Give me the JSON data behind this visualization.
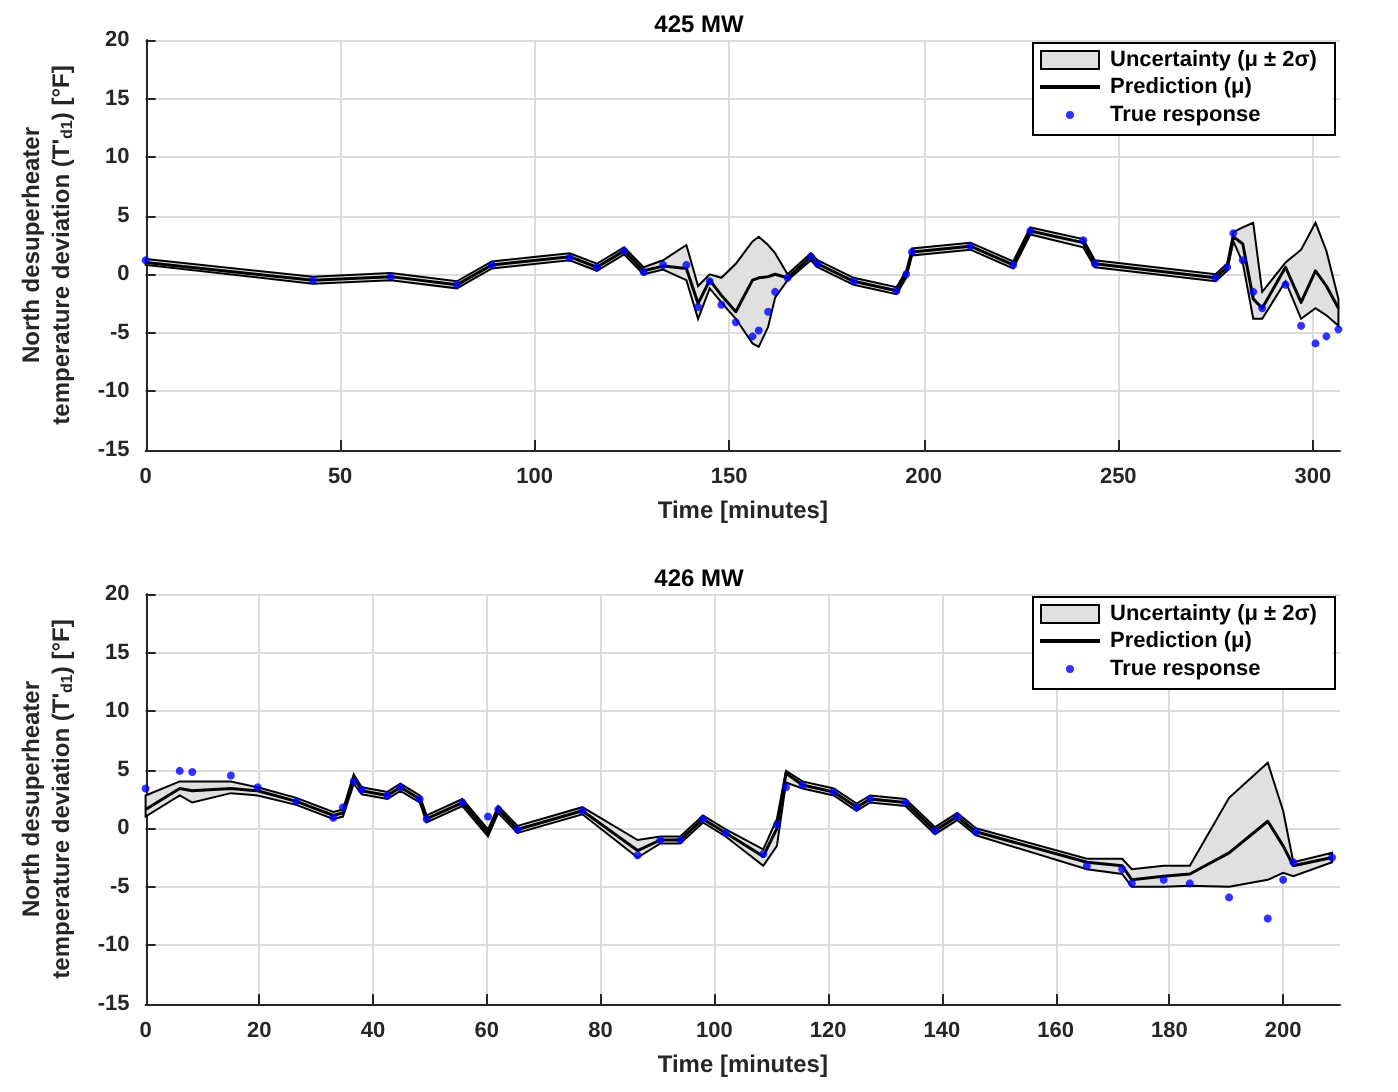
{
  "chart_data": [
    {
      "type": "line",
      "title": "425 MW",
      "xlabel": "Time [minutes]",
      "ylabel": "North desuperheater temperature deviation (T'$_{d1}$) [°F]",
      "xlim": [
        0,
        307
      ],
      "xticks": [
        0,
        50,
        100,
        150,
        200,
        250,
        300
      ],
      "ylim": [
        -15,
        20
      ],
      "yticks": [
        -15,
        -10,
        -5,
        0,
        5,
        10,
        15,
        20
      ],
      "grid": true,
      "legend": "top right",
      "annotations": [
        "Uncertainty (μ ± 2σ)"
      ],
      "x": [
        0,
        43,
        63,
        80,
        89,
        109,
        116,
        123,
        128,
        133,
        139,
        142,
        145,
        148,
        151.7,
        156,
        157.6,
        160,
        161.8,
        165,
        171,
        172.7,
        182,
        193,
        195.5,
        197,
        212,
        223,
        227.4,
        241,
        244,
        275,
        278,
        279.6,
        282,
        284.7,
        287,
        293,
        297,
        300.7,
        303.5,
        306.6
      ],
      "series": [
        {
          "name": "Prediction (μ)",
          "type": "line",
          "color": "#000000",
          "values": [
            1.0,
            -0.5,
            -0.2,
            -0.9,
            0.8,
            1.5,
            0.6,
            2.0,
            0.3,
            0.7,
            0.5,
            -2.5,
            -0.5,
            -1.8,
            -3.2,
            -0.5,
            -0.3,
            -0.2,
            0.0,
            -0.3,
            1.5,
            0.9,
            -0.6,
            -1.4,
            0.0,
            1.9,
            2.4,
            0.8,
            3.7,
            2.7,
            0.9,
            -0.3,
            0.6,
            3.2,
            2.6,
            -2.1,
            -2.9,
            0.6,
            -2.4,
            0.3,
            -1.0,
            -2.9
          ],
          "lower": [
            0.8,
            -0.8,
            -0.5,
            -1.2,
            0.5,
            1.2,
            0.3,
            1.7,
            0.0,
            0.4,
            -0.5,
            -3.8,
            -1.2,
            -2.4,
            -3.8,
            -5.9,
            -6.2,
            -4.5,
            -2.0,
            -0.5,
            1.2,
            0.6,
            -0.9,
            -1.7,
            -0.3,
            1.6,
            2.1,
            0.5,
            3.4,
            2.3,
            0.6,
            -0.6,
            0.3,
            2.8,
            1.0,
            -3.8,
            -3.8,
            -0.6,
            -3.8,
            -2.9,
            -3.5,
            -4.4
          ],
          "upper": [
            1.3,
            -0.2,
            0.1,
            -0.6,
            1.1,
            1.8,
            0.9,
            2.3,
            0.6,
            1.2,
            2.5,
            -1.0,
            0.0,
            -0.3,
            0.9,
            2.8,
            3.2,
            2.5,
            1.8,
            0.0,
            1.8,
            1.2,
            -0.3,
            -1.1,
            0.3,
            2.2,
            2.7,
            1.1,
            4.0,
            3.0,
            1.2,
            0.0,
            0.9,
            3.6,
            4.0,
            4.4,
            -1.5,
            1.0,
            2.1,
            4.4,
            2.0,
            -2.1
          ]
        },
        {
          "name": "True response",
          "type": "scatter",
          "marker": "circle",
          "color": "#0000ff",
          "values": [
            1.2,
            -0.5,
            -0.2,
            -0.9,
            0.8,
            1.4,
            0.6,
            2.0,
            0.2,
            0.8,
            0.8,
            -2.8,
            -0.6,
            -2.6,
            -4.1,
            -5.3,
            -4.8,
            -3.2,
            -1.5,
            -0.3,
            1.5,
            0.9,
            -0.6,
            -1.4,
            0.0,
            1.9,
            2.4,
            0.8,
            3.7,
            2.9,
            0.9,
            -0.3,
            0.6,
            3.5,
            1.2,
            -1.5,
            -2.9,
            -0.9,
            -4.4,
            -5.9,
            -5.3,
            -4.7
          ]
        }
      ]
    },
    {
      "type": "line",
      "title": "426 MW",
      "xlabel": "Time [minutes]",
      "ylabel": "North desuperheater temperature deviation (T'$_{d1}$) [°F]",
      "xlim": [
        0,
        210
      ],
      "xticks": [
        0,
        20,
        40,
        60,
        80,
        100,
        120,
        140,
        160,
        180,
        200
      ],
      "ylim": [
        -15,
        20
      ],
      "yticks": [
        -15,
        -10,
        -5,
        0,
        5,
        10,
        15,
        20
      ],
      "grid": true,
      "legend": "top right",
      "annotations": [
        "Uncertainty (μ ± 2σ)"
      ],
      "x": [
        0,
        6,
        8.2,
        15,
        19.7,
        26.5,
        33,
        34.7,
        36.6,
        38,
        42.5,
        44.8,
        48.2,
        49.4,
        55.7,
        60.2,
        62,
        65.4,
        76.8,
        86.5,
        90.5,
        94,
        98,
        102,
        108.6,
        111,
        112.6,
        115.5,
        121,
        125,
        127.4,
        133.6,
        138.8,
        142.7,
        146,
        165.5,
        171.7,
        173.4,
        179,
        183.6,
        190.5,
        197.3,
        200,
        201.8,
        208.6
      ],
      "series": [
        {
          "name": "Prediction (μ)",
          "type": "line",
          "color": "#000000",
          "values": [
            1.6,
            3.4,
            3.2,
            3.4,
            3.2,
            2.3,
            1.1,
            1.3,
            4.4,
            3.2,
            2.8,
            3.5,
            2.5,
            0.8,
            2.2,
            -0.4,
            1.6,
            -0.1,
            1.5,
            -1.9,
            -1.0,
            -1.0,
            0.8,
            -0.4,
            -2.4,
            0.0,
            4.7,
            3.7,
            3.1,
            1.8,
            2.5,
            2.2,
            -0.2,
            1.0,
            -0.3,
            -2.9,
            -3.2,
            -4.4,
            -4.1,
            -3.9,
            -2.1,
            0.6,
            -1.5,
            -3.2,
            -2.5
          ],
          "lower": [
            1.0,
            2.8,
            2.2,
            3.0,
            2.8,
            2.0,
            0.8,
            1.0,
            3.8,
            2.9,
            2.5,
            3.2,
            2.2,
            0.5,
            1.9,
            -0.7,
            1.3,
            -0.4,
            1.2,
            -2.5,
            -1.3,
            -1.3,
            0.5,
            -0.7,
            -3.2,
            -1.5,
            3.9,
            3.4,
            2.8,
            1.5,
            2.2,
            1.9,
            -0.5,
            0.7,
            -0.6,
            -3.5,
            -3.9,
            -5.0,
            -5.0,
            -4.9,
            -5.0,
            -4.4,
            -3.8,
            -4.1,
            -2.9
          ],
          "upper": [
            2.8,
            4.0,
            4.0,
            4.0,
            3.5,
            2.6,
            1.4,
            1.6,
            4.6,
            3.5,
            3.1,
            3.8,
            2.8,
            1.1,
            2.5,
            -0.1,
            1.9,
            0.2,
            1.8,
            -1.0,
            -0.7,
            -0.7,
            1.1,
            -0.1,
            -1.8,
            0.8,
            4.9,
            4.0,
            3.4,
            2.1,
            2.8,
            2.5,
            0.1,
            1.3,
            0.0,
            -2.6,
            -2.6,
            -3.5,
            -3.2,
            -3.2,
            2.6,
            5.6,
            1.5,
            -2.9,
            -2.1
          ]
        },
        {
          "name": "True response",
          "type": "scatter",
          "marker": "circle",
          "color": "#0000ff",
          "values": [
            3.4,
            4.9,
            4.8,
            4.5,
            3.5,
            2.3,
            0.9,
            1.8,
            4.0,
            3.3,
            2.8,
            3.5,
            2.5,
            0.8,
            2.2,
            1.0,
            1.6,
            -0.1,
            1.5,
            -2.3,
            -1.0,
            -1.0,
            0.8,
            -0.4,
            -2.2,
            0.3,
            3.5,
            3.7,
            3.1,
            1.8,
            2.5,
            2.2,
            -0.2,
            1.0,
            -0.3,
            -3.2,
            -3.5,
            -4.7,
            -4.4,
            -4.7,
            -5.9,
            -7.7,
            -4.4,
            -2.9,
            -2.5
          ]
        }
      ]
    }
  ]
}
